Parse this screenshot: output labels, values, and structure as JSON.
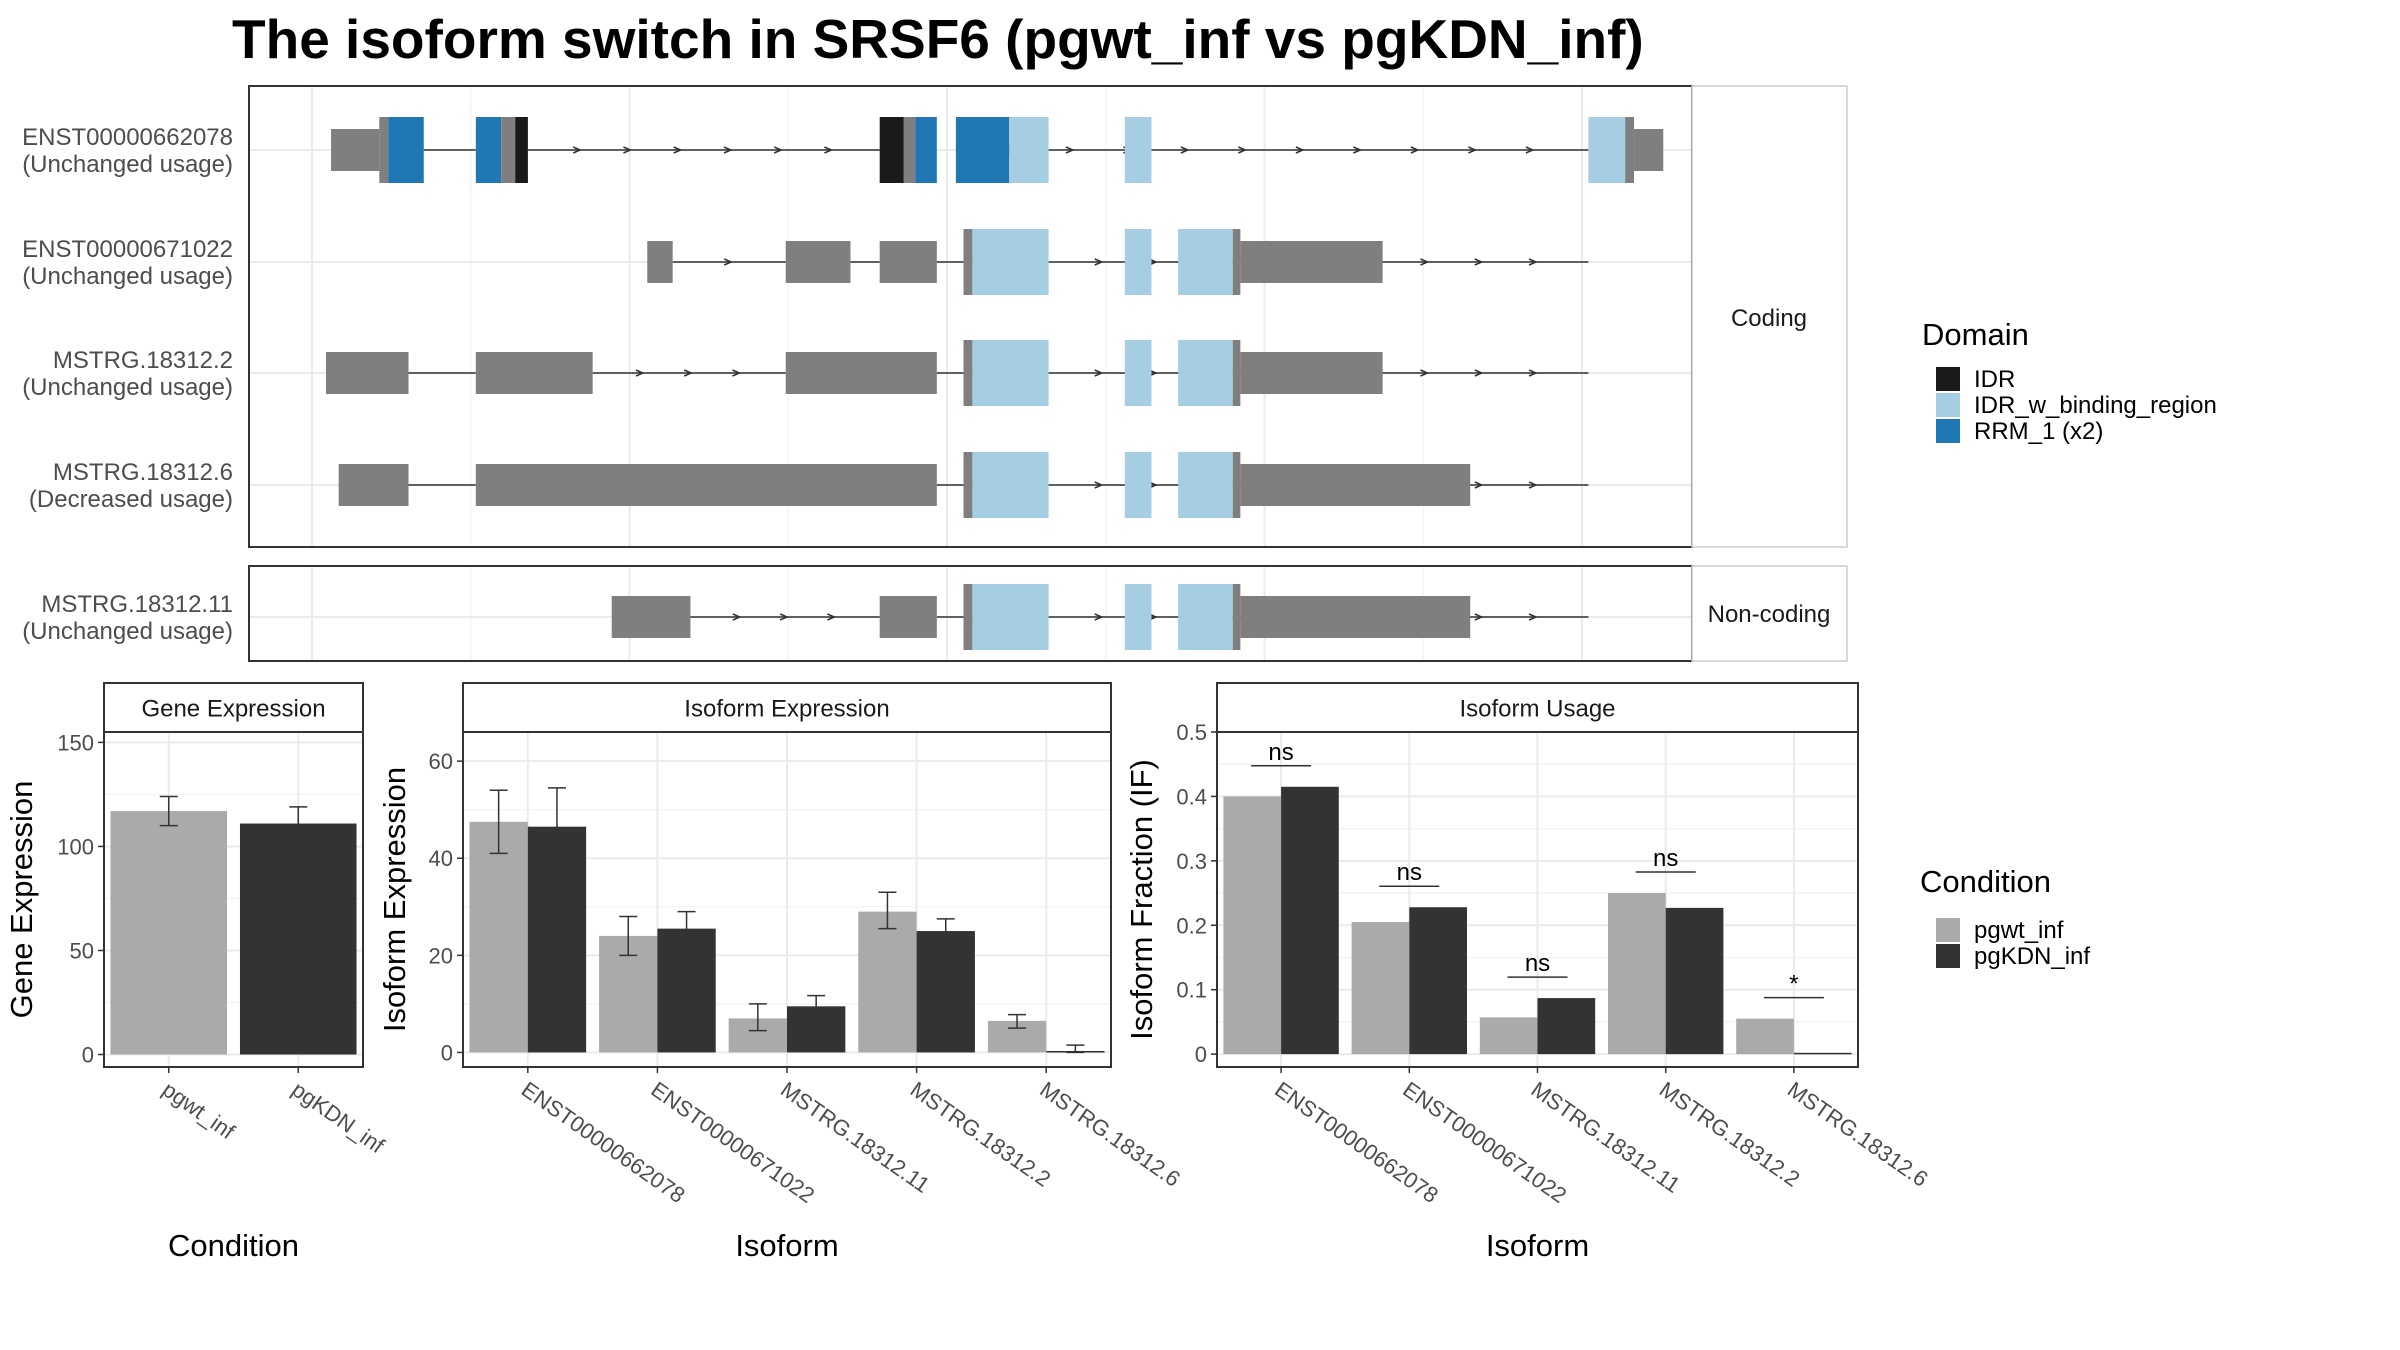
{
  "title": "The isoform switch in SRSF6 (pgwt_inf vs pgKDN_inf)",
  "colors": {
    "IDR": "#1a1a1a",
    "IDR_w_binding_region": "#a6cee3",
    "RRM_1 (x2)": "#1f78b4",
    "exon": "#7f7f7f",
    "pgwt_inf": "#aaaaaa",
    "pgKDN_inf": "#333333"
  },
  "structure": {
    "coding_strip": "Coding",
    "noncoding_strip": "Non-coding",
    "genome_range": [
      0,
      1000
    ],
    "isoforms": [
      {
        "id": "ENST00000662078",
        "usage": "(Unchanged usage)",
        "group": "coding",
        "introns": [
          [
            88,
            129
          ],
          [
            170,
            447
          ],
          [
            507,
            1005
          ]
        ],
        "segments": [
          {
            "start": 15,
            "end": 53,
            "type": "exon",
            "thick": false
          },
          {
            "start": 53,
            "end": 60,
            "type": "exon",
            "thick": true
          },
          {
            "start": 60,
            "end": 88,
            "type": "RRM_1 (x2)",
            "thick": true
          },
          {
            "start": 129,
            "end": 149,
            "type": "RRM_1 (x2)",
            "thick": true
          },
          {
            "start": 149,
            "end": 160,
            "type": "exon",
            "thick": true
          },
          {
            "start": 160,
            "end": 170,
            "type": "IDR",
            "thick": true
          },
          {
            "start": 447,
            "end": 466,
            "type": "IDR",
            "thick": true
          },
          {
            "start": 466,
            "end": 475,
            "type": "exon",
            "thick": true
          },
          {
            "start": 475,
            "end": 492,
            "type": "RRM_1 (x2)",
            "thick": true
          },
          {
            "start": 507,
            "end": 549,
            "type": "RRM_1 (x2)",
            "thick": true
          },
          {
            "start": 549,
            "end": 580,
            "type": "IDR_w_binding_region",
            "thick": true
          },
          {
            "start": 640,
            "end": 661,
            "type": "IDR_w_binding_region",
            "thick": true
          },
          {
            "start": 1005,
            "end": 1034,
            "type": "IDR_w_binding_region",
            "thick": true
          },
          {
            "start": 1034,
            "end": 1041,
            "type": "exon",
            "thick": true
          },
          {
            "start": 1041,
            "end": 1064,
            "type": "exon",
            "thick": false
          }
        ]
      },
      {
        "id": "ENST00000671022",
        "usage": "(Unchanged usage)",
        "group": "coding",
        "introns": [
          [
            284,
            373
          ],
          [
            424,
            447
          ],
          [
            492,
            1005
          ]
        ],
        "segments": [
          {
            "start": 264,
            "end": 284,
            "type": "exon",
            "thick": false
          },
          {
            "start": 373,
            "end": 424,
            "type": "exon",
            "thick": false
          },
          {
            "start": 447,
            "end": 492,
            "type": "exon",
            "thick": false
          },
          {
            "start": 513,
            "end": 520,
            "type": "exon",
            "thick": true
          },
          {
            "start": 520,
            "end": 580,
            "type": "IDR_w_binding_region",
            "thick": true
          },
          {
            "start": 640,
            "end": 661,
            "type": "IDR_w_binding_region",
            "thick": true
          },
          {
            "start": 682,
            "end": 725,
            "type": "IDR_w_binding_region",
            "thick": true
          },
          {
            "start": 725,
            "end": 731,
            "type": "exon",
            "thick": true
          },
          {
            "start": 731,
            "end": 843,
            "type": "exon",
            "thick": false
          }
        ]
      },
      {
        "id": "MSTRG.18312.2",
        "usage": "(Unchanged usage)",
        "group": "coding",
        "introns": [
          [
            76,
            129
          ],
          [
            221,
            373
          ],
          [
            492,
            1005
          ]
        ],
        "segments": [
          {
            "start": 11,
            "end": 76,
            "type": "exon",
            "thick": false
          },
          {
            "start": 129,
            "end": 221,
            "type": "exon",
            "thick": false
          },
          {
            "start": 373,
            "end": 492,
            "type": "exon",
            "thick": false
          },
          {
            "start": 513,
            "end": 520,
            "type": "exon",
            "thick": true
          },
          {
            "start": 520,
            "end": 580,
            "type": "IDR_w_binding_region",
            "thick": true
          },
          {
            "start": 640,
            "end": 661,
            "type": "IDR_w_binding_region",
            "thick": true
          },
          {
            "start": 682,
            "end": 725,
            "type": "IDR_w_binding_region",
            "thick": true
          },
          {
            "start": 725,
            "end": 731,
            "type": "exon",
            "thick": true
          },
          {
            "start": 731,
            "end": 843,
            "type": "exon",
            "thick": false
          }
        ]
      },
      {
        "id": "MSTRG.18312.6",
        "usage": "(Decreased usage)",
        "group": "coding",
        "introns": [
          [
            76,
            129
          ],
          [
            492,
            1005
          ]
        ],
        "segments": [
          {
            "start": 21,
            "end": 76,
            "type": "exon",
            "thick": false
          },
          {
            "start": 129,
            "end": 492,
            "type": "exon",
            "thick": false
          },
          {
            "start": 513,
            "end": 520,
            "type": "exon",
            "thick": true
          },
          {
            "start": 520,
            "end": 580,
            "type": "IDR_w_binding_region",
            "thick": true
          },
          {
            "start": 640,
            "end": 661,
            "type": "IDR_w_binding_region",
            "thick": true
          },
          {
            "start": 682,
            "end": 725,
            "type": "IDR_w_binding_region",
            "thick": true
          },
          {
            "start": 725,
            "end": 731,
            "type": "exon",
            "thick": true
          },
          {
            "start": 731,
            "end": 912,
            "type": "exon",
            "thick": false
          }
        ]
      },
      {
        "id": "MSTRG.18312.11",
        "usage": "(Unchanged usage)",
        "group": "noncoding",
        "introns": [
          [
            298,
            447
          ],
          [
            492,
            1005
          ]
        ],
        "segments": [
          {
            "start": 236,
            "end": 298,
            "type": "exon",
            "thick": false
          },
          {
            "start": 447,
            "end": 492,
            "type": "exon",
            "thick": false
          },
          {
            "start": 513,
            "end": 520,
            "type": "exon",
            "thick": true
          },
          {
            "start": 520,
            "end": 580,
            "type": "IDR_w_binding_region",
            "thick": true
          },
          {
            "start": 640,
            "end": 661,
            "type": "IDR_w_binding_region",
            "thick": true
          },
          {
            "start": 682,
            "end": 725,
            "type": "IDR_w_binding_region",
            "thick": true
          },
          {
            "start": 725,
            "end": 731,
            "type": "exon",
            "thick": true
          },
          {
            "start": 731,
            "end": 912,
            "type": "exon",
            "thick": false
          }
        ]
      }
    ]
  },
  "chart_data": [
    {
      "type": "bar",
      "strip": "Gene Expression",
      "xlabel": "Condition",
      "ylabel": "Gene Expression",
      "ylim": [
        -6,
        155
      ],
      "yticks": [
        0,
        50,
        100,
        150
      ],
      "categories": [
        "pgwt_inf",
        "pgKDN_inf"
      ],
      "values": [
        117,
        111
      ],
      "error_low": [
        110,
        103
      ],
      "error_high": [
        124,
        119
      ]
    },
    {
      "type": "bar",
      "strip": "Isoform Expression",
      "xlabel": "Isoform",
      "ylabel": "Isoform Expression",
      "ylim": [
        -3,
        66
      ],
      "yticks": [
        0,
        20,
        40,
        60
      ],
      "categories": [
        "ENST00000662078",
        "ENST00000671022",
        "MSTRG.18312.11",
        "MSTRG.18312.2",
        "MSTRG.18312.6"
      ],
      "series": [
        {
          "name": "pgwt_inf",
          "values": [
            47.5,
            24,
            7,
            29,
            6.5
          ],
          "error_low": [
            41,
            20,
            4.5,
            25.5,
            5
          ],
          "error_high": [
            54,
            28,
            10,
            33,
            7.8
          ]
        },
        {
          "name": "pgKDN_inf",
          "values": [
            46.5,
            25.5,
            9.5,
            25,
            0.3
          ],
          "error_low": [
            38.5,
            22,
            7.5,
            22.5,
            0
          ],
          "error_high": [
            54.5,
            29,
            11.7,
            27.5,
            1.5
          ]
        }
      ]
    },
    {
      "type": "bar",
      "strip": "Isoform Usage",
      "xlabel": "Isoform",
      "ylabel": "Isoform Fraction (IF)",
      "ylim": [
        -0.02,
        0.5
      ],
      "yticks": [
        0.0,
        0.1,
        0.2,
        0.3,
        0.4,
        0.5
      ],
      "categories": [
        "ENST00000662078",
        "ENST00000671022",
        "MSTRG.18312.11",
        "MSTRG.18312.2",
        "MSTRG.18312.6"
      ],
      "series": [
        {
          "name": "pgwt_inf",
          "values": [
            0.4,
            0.205,
            0.057,
            0.25,
            0.055
          ]
        },
        {
          "name": "pgKDN_inf",
          "values": [
            0.415,
            0.228,
            0.087,
            0.227,
            0.002
          ]
        }
      ],
      "significance": [
        "ns",
        "ns",
        "ns",
        "ns",
        "*"
      ]
    }
  ],
  "legend": {
    "domain_title": "Domain",
    "domain_items": [
      "IDR",
      "IDR_w_binding_region",
      "RRM_1 (x2)"
    ],
    "condition_title": "Condition",
    "condition_items": [
      "pgwt_inf",
      "pgKDN_inf"
    ]
  }
}
